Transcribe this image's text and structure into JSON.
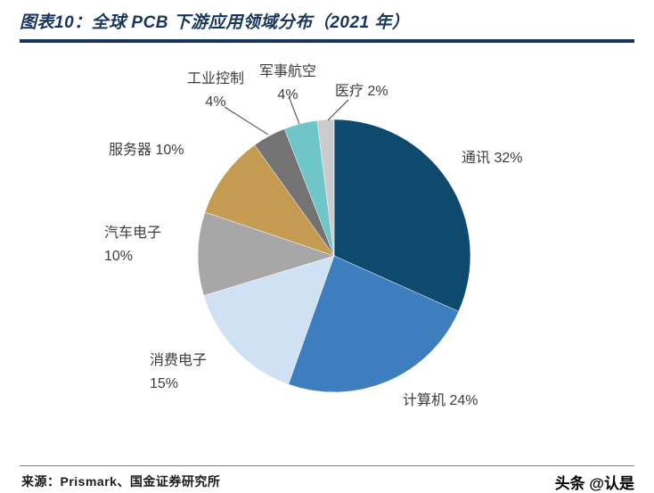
{
  "chart_data": {
    "type": "pie",
    "title": "图表10：全球 PCB 下游应用领域分布（2021 年）",
    "legend_position": "none",
    "labels_on_chart": true,
    "slices": [
      {
        "label": "通讯",
        "pct": "32%",
        "value": 32,
        "color": "#0d4a6e"
      },
      {
        "label": "计算机",
        "pct": "24%",
        "value": 24,
        "color": "#3d7ebf"
      },
      {
        "label": "消费电子",
        "pct": "15%",
        "value": 15,
        "color": "#cfe1f2"
      },
      {
        "label": "汽车电子",
        "pct": "10%",
        "value": 10,
        "color": "#a7a7a7"
      },
      {
        "label": "服务器",
        "pct": "10%",
        "value": 10,
        "color": "#c59a51"
      },
      {
        "label": "工业控制",
        "pct": "4%",
        "value": 4,
        "color": "#737373"
      },
      {
        "label": "军事航空",
        "pct": "4%",
        "value": 4,
        "color": "#6ec6c8"
      },
      {
        "label": "医疗",
        "pct": "2%",
        "value": 2,
        "color": "#c9cbcd"
      }
    ],
    "start_angle_deg": 0,
    "direction": "clockwise"
  },
  "theme": {
    "title_color": "#17365d",
    "label_color": "#3d3d3d",
    "rule_color": "#7f7f7f"
  },
  "footer": {
    "source": "来源：Prismark、国金证券研究所",
    "watermark": "头条 @认是"
  }
}
